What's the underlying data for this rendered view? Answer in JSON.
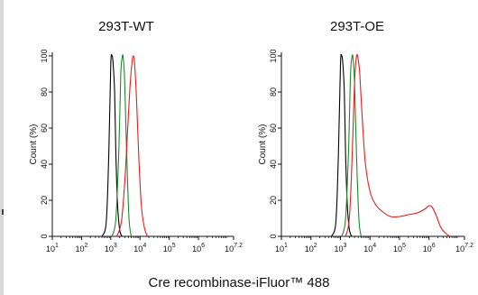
{
  "chart_data": [
    {
      "type": "line",
      "title": "293T-WT",
      "ylabel": "Count (%)",
      "xscale": "log",
      "xlim": [
        10,
        15848931.9
      ],
      "ylim": [
        0,
        100
      ],
      "x_ticks": [
        {
          "base": "10",
          "exp": "1"
        },
        {
          "base": "10",
          "exp": "2"
        },
        {
          "base": "10",
          "exp": "3"
        },
        {
          "base": "10",
          "exp": "4"
        },
        {
          "base": "10",
          "exp": "5"
        },
        {
          "base": "10",
          "exp": "6"
        },
        {
          "base": "10",
          "exp": "7.2"
        }
      ],
      "y_ticks": [
        "0",
        "20",
        "40",
        "60",
        "80",
        "100"
      ],
      "series": [
        {
          "color": "#000000",
          "x": [
            500,
            700,
            850,
            1000,
            1100,
            1200,
            1350,
            1500,
            1700,
            2000,
            2400
          ],
          "y": [
            0,
            8,
            45,
            95,
            100,
            96,
            80,
            45,
            18,
            4,
            0
          ]
        },
        {
          "color": "#1f8a2a",
          "x": [
            1100,
            1500,
            1900,
            2200,
            2500,
            2700,
            3000,
            3500,
            4200,
            5000
          ],
          "y": [
            0,
            10,
            50,
            90,
            100,
            98,
            85,
            45,
            10,
            0
          ]
        },
        {
          "color": "#e02020",
          "x": [
            1600,
            2300,
            3000,
            3800,
            4500,
            5200,
            5800,
            6500,
            7500,
            9000,
            11000,
            14000,
            18000
          ],
          "y": [
            0,
            8,
            30,
            60,
            82,
            95,
            100,
            96,
            78,
            45,
            18,
            5,
            0
          ]
        }
      ]
    },
    {
      "type": "line",
      "title": "293T-OE",
      "ylabel": "Count (%)",
      "xscale": "log",
      "xlim": [
        10,
        15848931.9
      ],
      "ylim": [
        0,
        100
      ],
      "x_ticks": [
        {
          "base": "10",
          "exp": "1"
        },
        {
          "base": "10",
          "exp": "2"
        },
        {
          "base": "10",
          "exp": "3"
        },
        {
          "base": "10",
          "exp": "4"
        },
        {
          "base": "10",
          "exp": "5"
        },
        {
          "base": "10",
          "exp": "6"
        },
        {
          "base": "10",
          "exp": "7.2"
        }
      ],
      "y_ticks": [
        "0",
        "20",
        "40",
        "60",
        "80",
        "100"
      ],
      "series": [
        {
          "color": "#000000",
          "x": [
            500,
            700,
            850,
            1000,
            1100,
            1200,
            1350,
            1500,
            1700,
            2000,
            2400
          ],
          "y": [
            0,
            8,
            45,
            95,
            100,
            96,
            80,
            45,
            18,
            4,
            0
          ]
        },
        {
          "color": "#1f8a2a",
          "x": [
            1100,
            1500,
            1900,
            2200,
            2500,
            2700,
            3000,
            3500,
            4200,
            5000
          ],
          "y": [
            0,
            10,
            50,
            90,
            100,
            98,
            85,
            45,
            10,
            0
          ]
        },
        {
          "color": "#e02020",
          "x": [
            1500,
            2000,
            2500,
            3000,
            3500,
            4000,
            4500,
            5500,
            7000,
            10000,
            15000,
            25000,
            50000,
            100000,
            200000,
            400000,
            700000,
            1000000,
            1300000,
            1800000,
            2500000,
            3500000,
            5000000
          ],
          "y": [
            0,
            10,
            45,
            85,
            100,
            98,
            90,
            65,
            40,
            25,
            18,
            14,
            11,
            11,
            12,
            13,
            15,
            17,
            16,
            11,
            5,
            2,
            0
          ]
        }
      ]
    }
  ],
  "shared_xlabel": "Cre recombinase-iFluor™ 488"
}
